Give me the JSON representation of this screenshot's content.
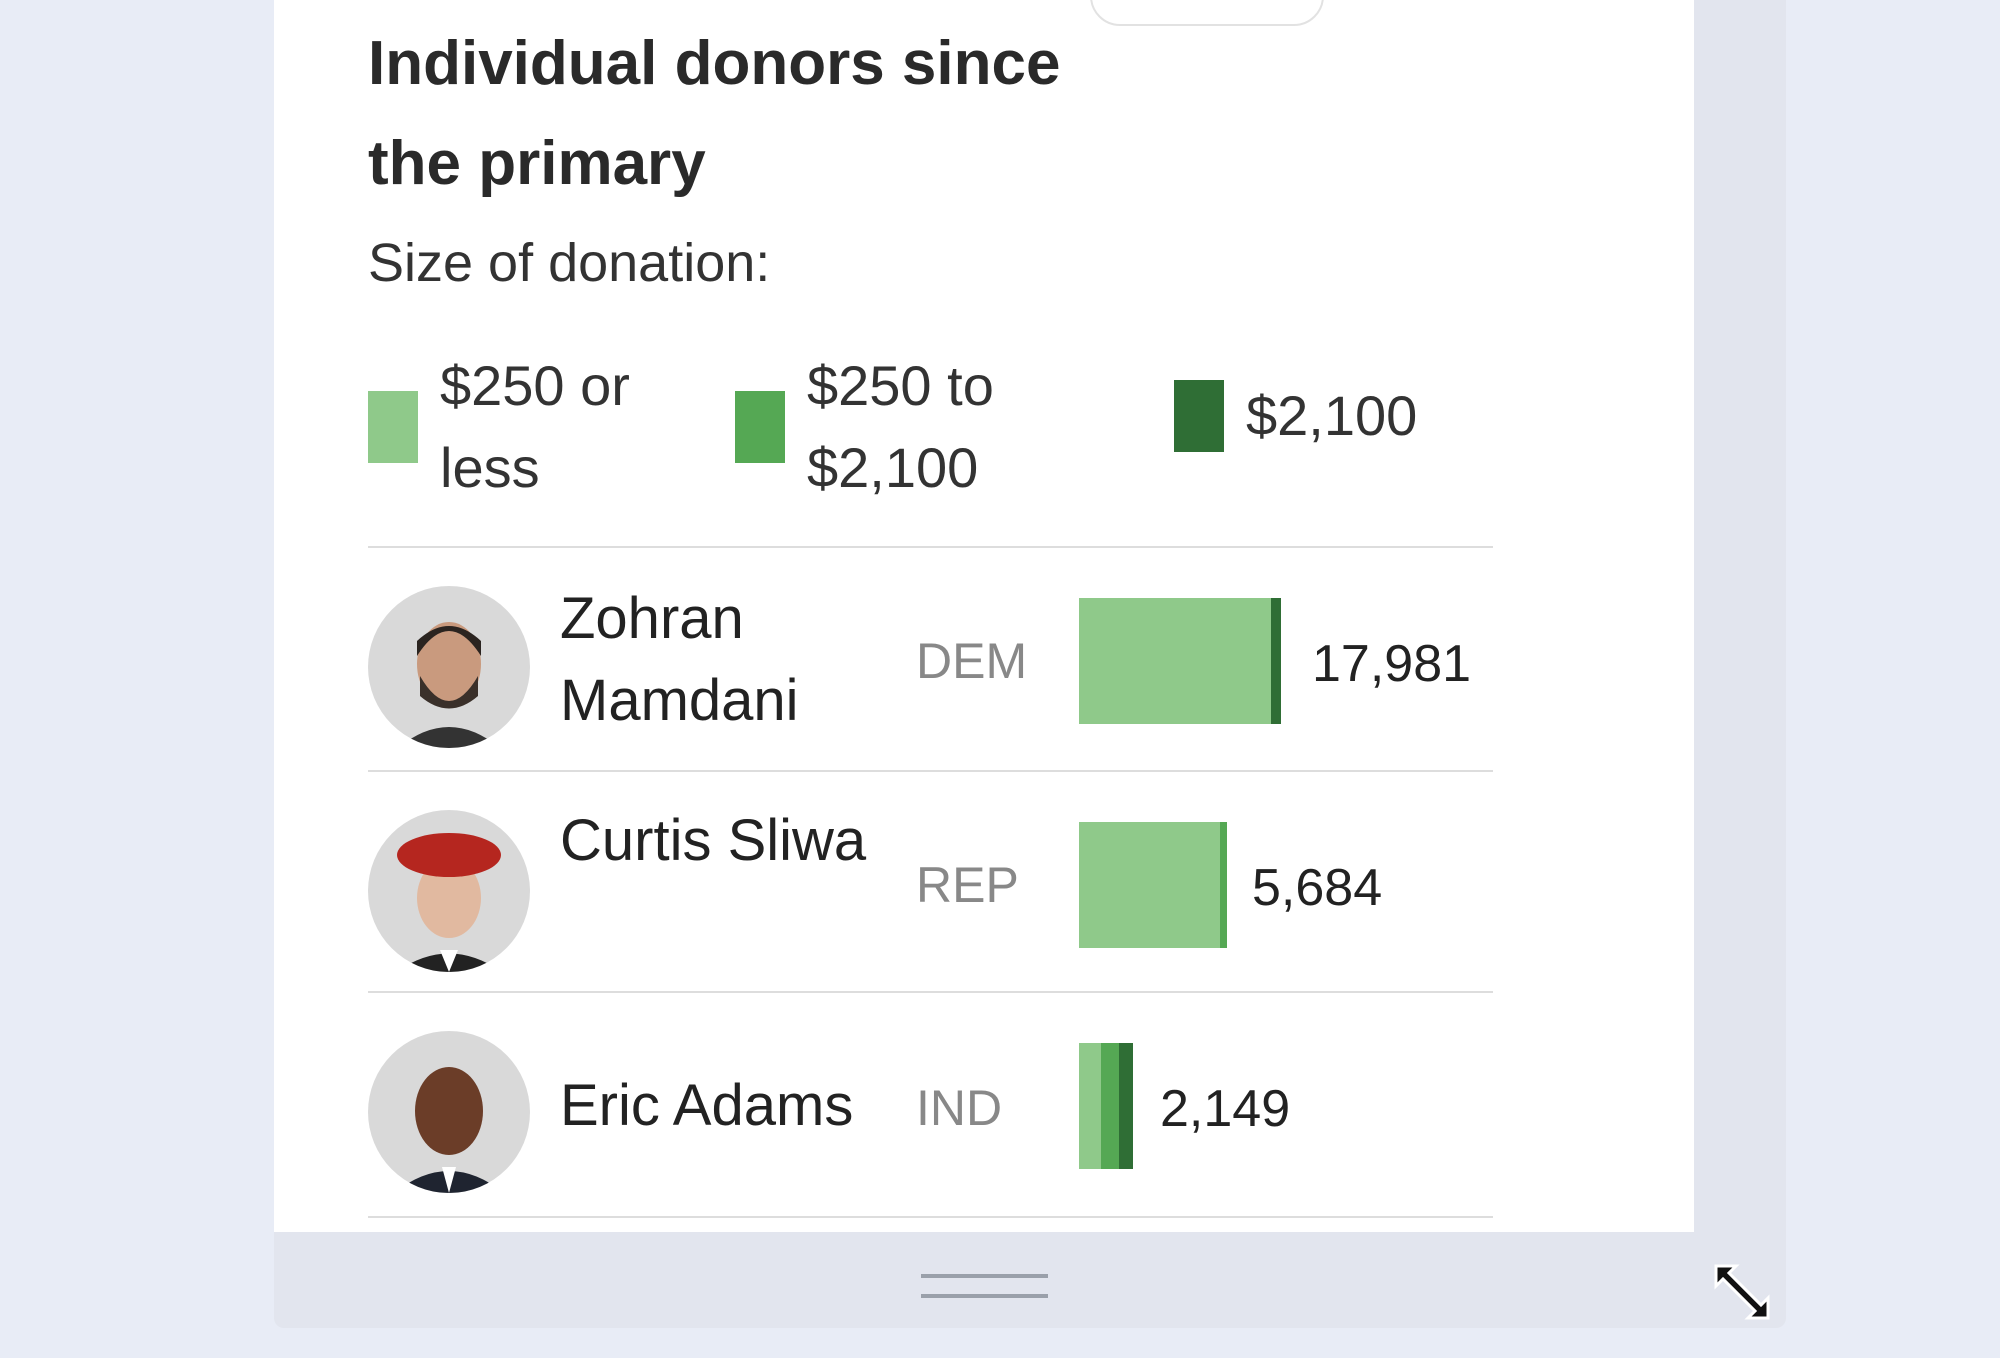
{
  "title": "Individual donors since the primary",
  "legend": {
    "heading": "Size of donation:",
    "items": [
      {
        "label": "$250 or less",
        "color": "#8fc98a"
      },
      {
        "label": "$250 to $2,100",
        "color": "#55a854"
      },
      {
        "label": "$2,100",
        "color": "#2f6e35"
      }
    ]
  },
  "candidates": [
    {
      "name": "Zohran Mamdani",
      "party": "DEM",
      "donors": "17,981",
      "segments": [
        0.95,
        0.0,
        0.05
      ]
    },
    {
      "name": "Curtis Sliwa",
      "party": "REP",
      "donors": "5,684",
      "segments": [
        0.95,
        0.05,
        0.0
      ]
    },
    {
      "name": "Eric Adams",
      "party": "IND",
      "donors": "2,149",
      "segments": [
        0.4,
        0.35,
        0.25
      ]
    }
  ]
}
